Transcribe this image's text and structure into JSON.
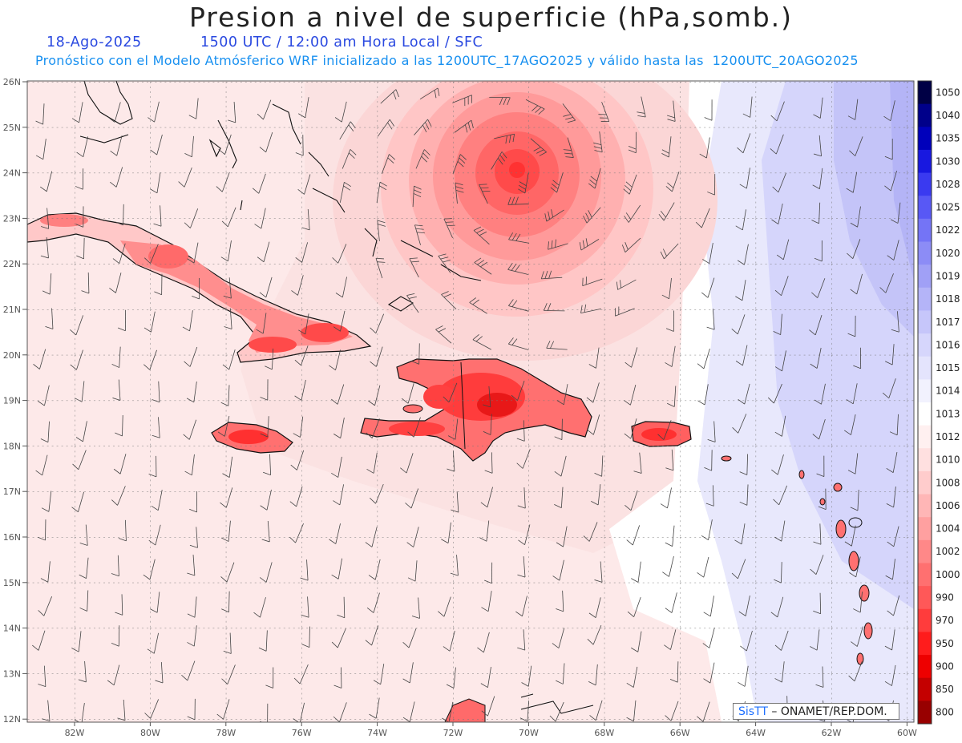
{
  "title": "Presion a nivel de superficie (hPa,somb.)",
  "subtitle": {
    "date": "18-Ago-2025",
    "time": "1500 UTC / 12:00 am Hora Local / SFC",
    "forecast": "Pronóstico con el Modelo Atmósferico WRF inicializado a las 1200UTC_17AGO2025 y válido hasta las  1200UTC_20AGO2025"
  },
  "map": {
    "lon_range": [
      -83.2,
      -59.8
    ],
    "lat_range": [
      11.85,
      26.2
    ],
    "lat_ticks": [
      "26N",
      "25N",
      "24N",
      "23N",
      "22N",
      "21N",
      "20N",
      "19N",
      "18N",
      "17N",
      "16N",
      "15N",
      "14N",
      "13N",
      "12N"
    ],
    "lon_ticks": [
      "82W",
      "80W",
      "78W",
      "76W",
      "74W",
      "72W",
      "70W",
      "68W",
      "66W",
      "64W",
      "62W",
      "60W"
    ],
    "low_center": {
      "lon": -70.0,
      "lat": 24.05
    }
  },
  "legend": {
    "labels": [
      "1050",
      "1040",
      "1035",
      "1030",
      "1028",
      "1025",
      "1022",
      "1020",
      "1019",
      "1018",
      "1017",
      "1016",
      "1015",
      "1014",
      "1013",
      "1012",
      "1010",
      "1008",
      "1006",
      "1004",
      "1002",
      "1000",
      "990",
      "970",
      "950",
      "900",
      "850",
      "800"
    ],
    "colors": [
      "#000045",
      "#00008a",
      "#0000bb",
      "#1818e0",
      "#3a3af0",
      "#5858f5",
      "#7474f6",
      "#8c8cf6",
      "#a0a0f6",
      "#b4b4f8",
      "#c6c6fa",
      "#d6d6fc",
      "#e4e4fd",
      "#f2f2fe",
      "#ffffff",
      "#fff0f0",
      "#ffe0e0",
      "#ffcccc",
      "#ffb6b6",
      "#ffa0a0",
      "#ff8888",
      "#ff7070",
      "#ff5858",
      "#ff3c3c",
      "#ff1c1c",
      "#ee0000",
      "#c40000",
      "#980000"
    ]
  },
  "credit": {
    "brand": "SisTT",
    "text": "ONAMET/REP.DOM."
  }
}
